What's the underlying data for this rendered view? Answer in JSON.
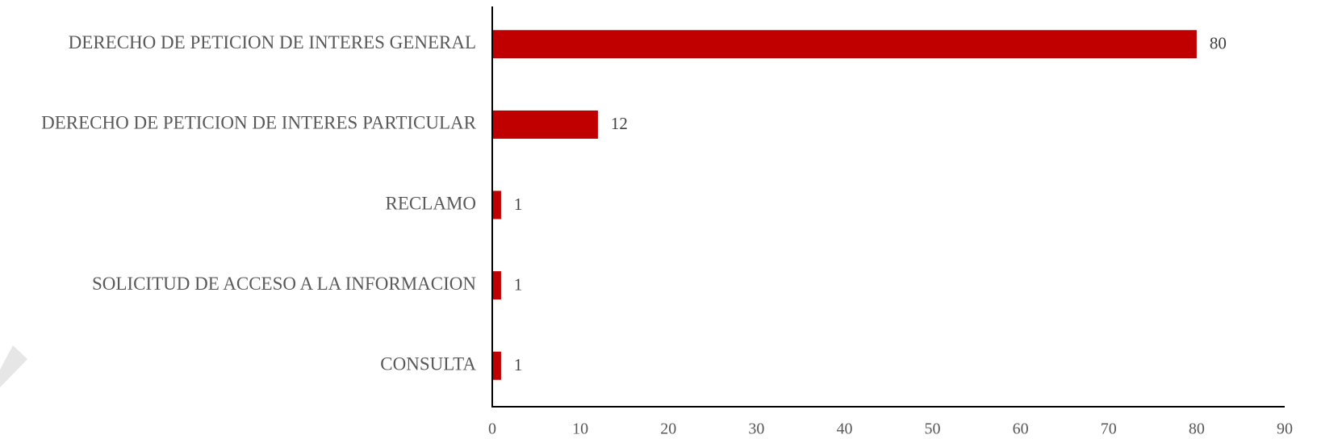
{
  "chart_data": {
    "type": "bar",
    "orientation": "horizontal",
    "categories": [
      "DERECHO DE PETICION DE INTERES GENERAL",
      "DERECHO DE PETICION DE INTERES PARTICULAR",
      "RECLAMO",
      "SOLICITUD DE ACCESO A LA INFORMACION",
      "CONSULTA"
    ],
    "values": [
      80,
      12,
      1,
      1,
      1
    ],
    "xlim": [
      0,
      90
    ],
    "xticks": [
      0,
      10,
      20,
      30,
      40,
      50,
      60,
      70,
      80,
      90
    ],
    "title": "",
    "xlabel": "",
    "ylabel": "",
    "grid": false,
    "legend": "none",
    "bar_color": "#C00000",
    "axis_color": "#000000",
    "text_color": "#595959"
  }
}
